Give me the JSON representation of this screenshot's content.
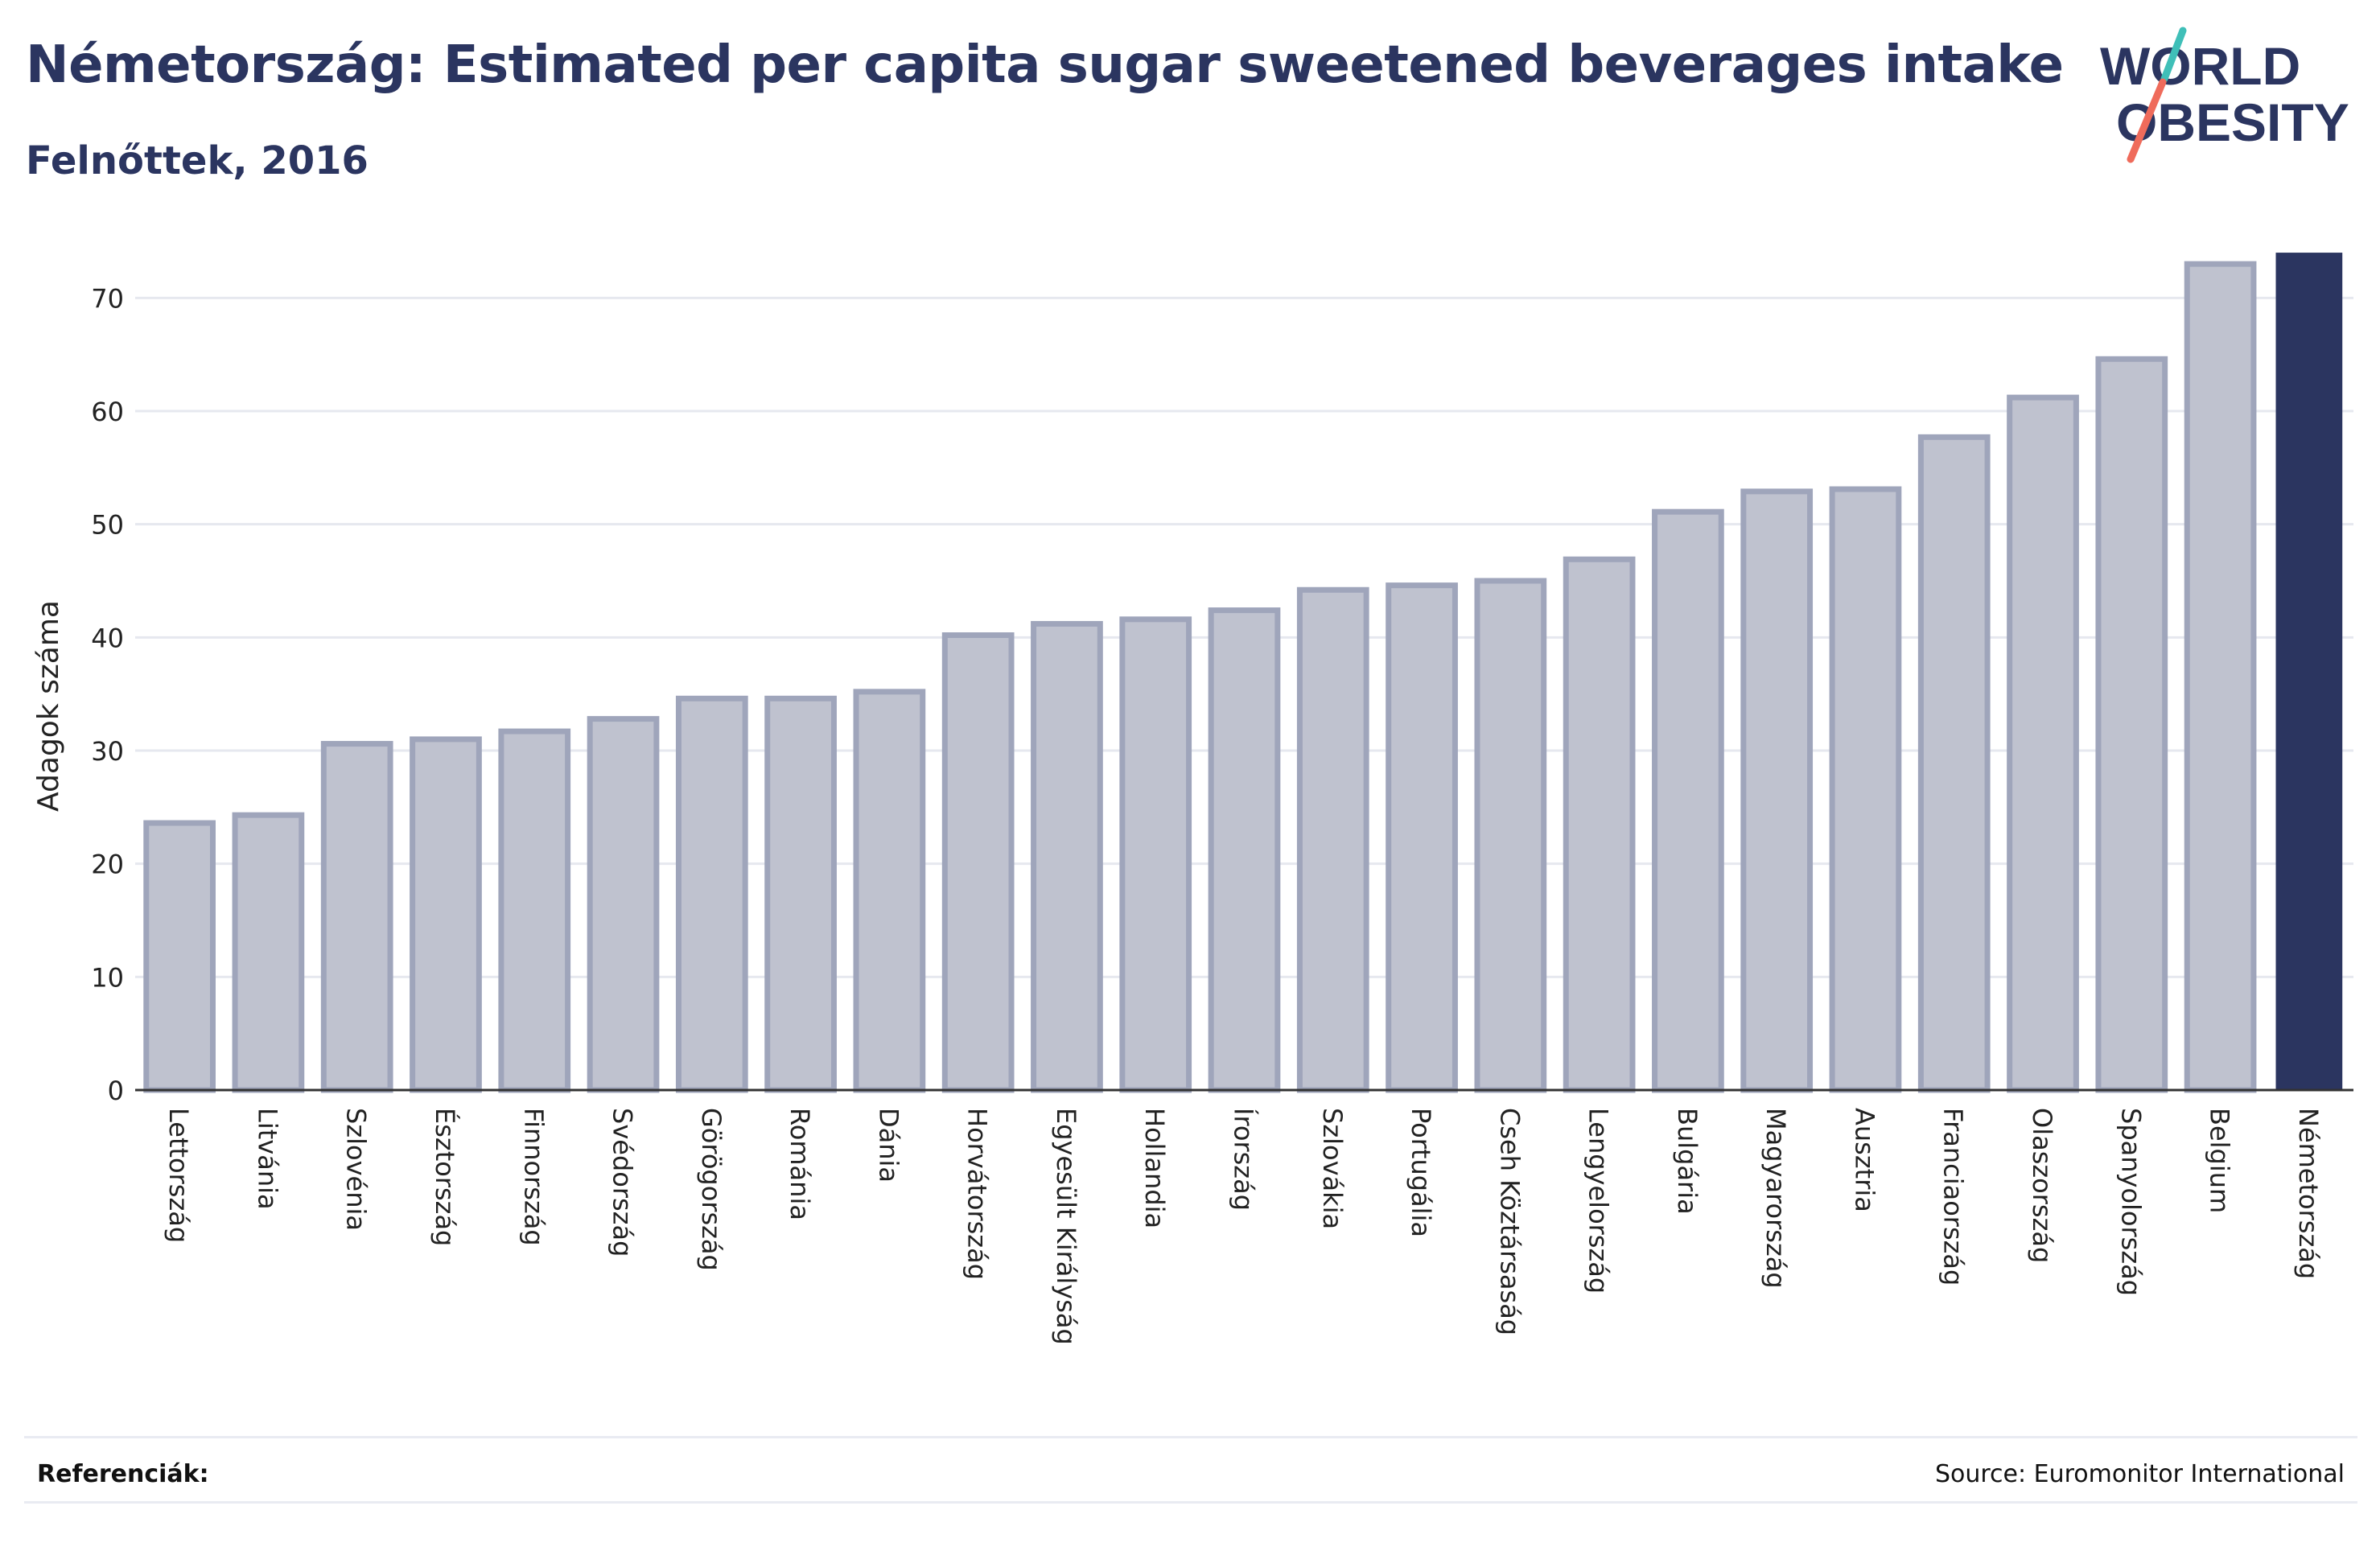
{
  "header": {
    "title": "Németország: Estimated per capita sugar sweetened beverages intake",
    "subtitle": "Felnőttek, 2016"
  },
  "logo": {
    "line1": "WORLD",
    "line2": "OBESITY",
    "accent_teal": "#3fbfb8",
    "accent_coral": "#ef6b5b",
    "text_color": "#2b3560"
  },
  "chart_data": {
    "type": "bar",
    "ylabel": "Adagok száma",
    "xlabel": "",
    "ylim": [
      0,
      75
    ],
    "yticks": [
      0,
      10,
      20,
      30,
      40,
      50,
      60,
      70
    ],
    "grid": true,
    "categories": [
      "Lettország",
      "Litvánia",
      "Szlovénia",
      "Észtország",
      "Finnország",
      "Svédország",
      "Görögország",
      "Románia",
      "Dánia",
      "Horvátország",
      "Egyesült Királyság",
      "Hollandia",
      "Írország",
      "Szlovákia",
      "Portugália",
      "Cseh Köztársaság",
      "Lengyelország",
      "Bulgária",
      "Magyarország",
      "Ausztria",
      "Franciaország",
      "Olaszország",
      "Spanyolország",
      "Belgium",
      "Németország"
    ],
    "values": [
      23.6,
      24.3,
      30.6,
      31.0,
      31.7,
      32.8,
      34.6,
      34.6,
      35.2,
      40.2,
      41.2,
      41.6,
      42.4,
      44.2,
      44.6,
      45.0,
      46.9,
      51.1,
      52.9,
      53.1,
      57.7,
      61.2,
      64.6,
      73.0,
      74.0
    ],
    "highlight": "Németország",
    "colors": {
      "bar_fill": "#bfc2cf",
      "bar_stroke": "#9fa5bb",
      "highlight": "#2b3560",
      "grid": "#e6e8ef",
      "axis": "#333333"
    }
  },
  "footer": {
    "references_label": "Referenciák:",
    "source": "Source: Euromonitor International"
  }
}
